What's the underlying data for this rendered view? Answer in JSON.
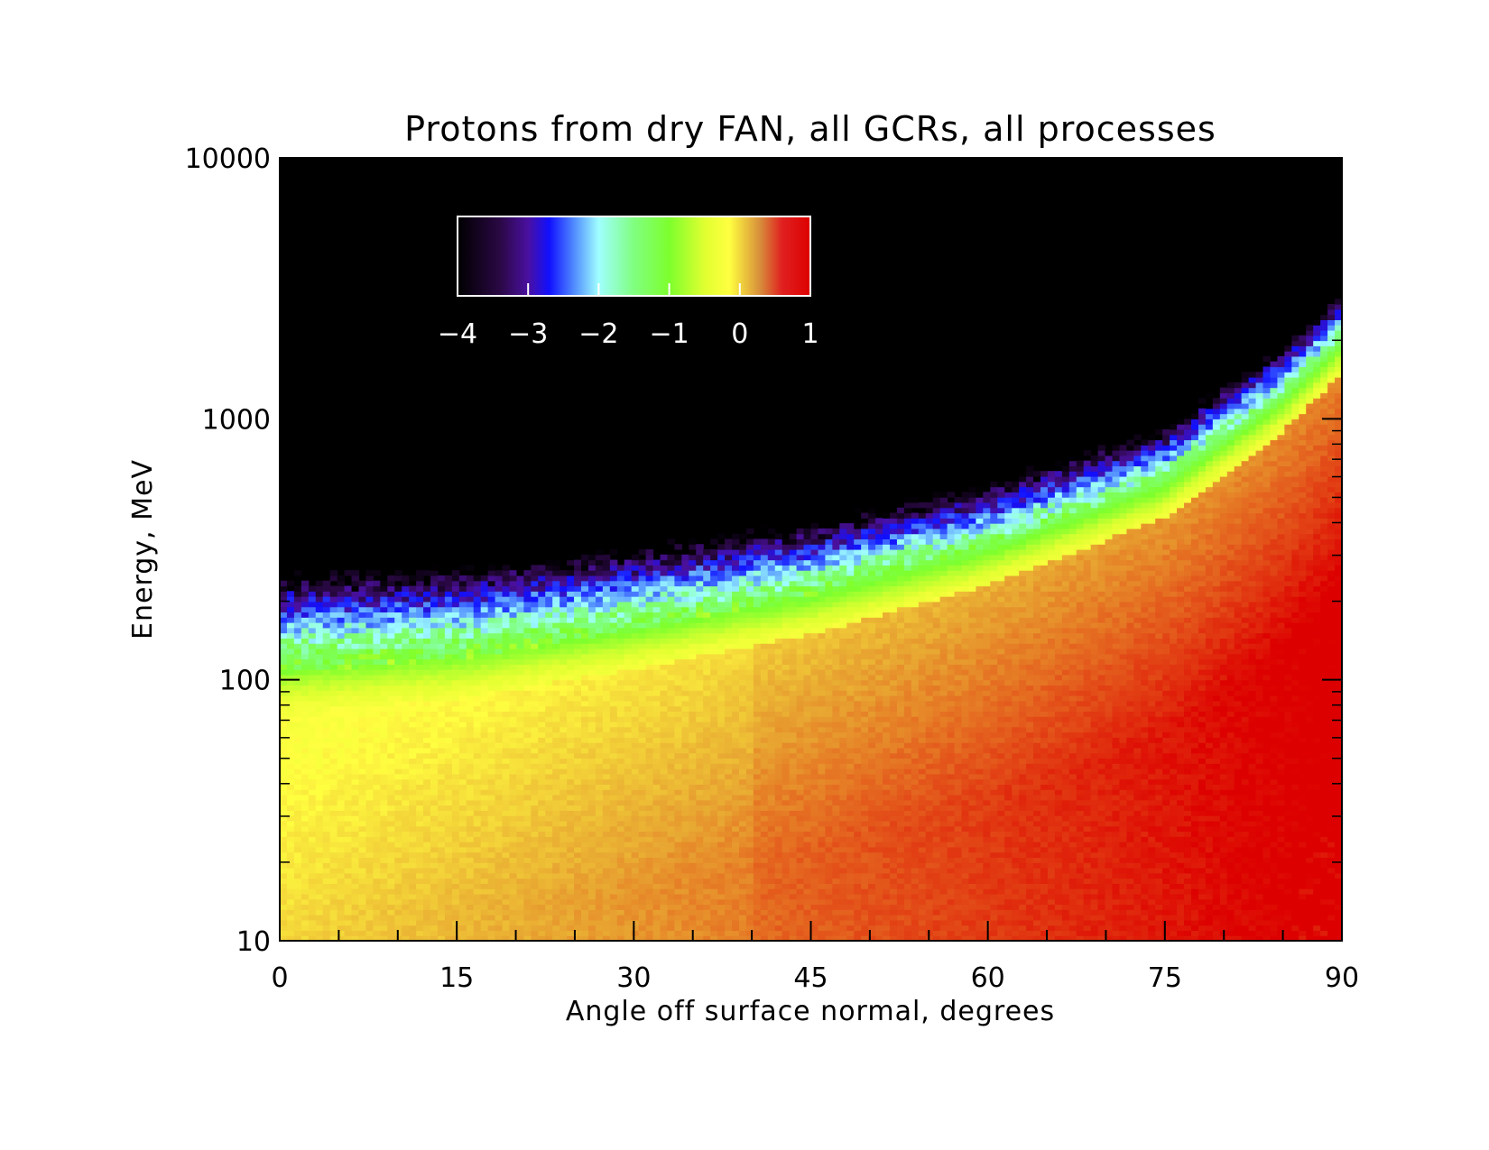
{
  "chart_data": {
    "type": "heatmap",
    "title": "Protons from dry FAN, all GCRs, all processes",
    "xlabel": "Angle off surface normal, degrees",
    "ylabel": "Energy, MeV",
    "xlim": [
      0,
      90
    ],
    "ylim": [
      10,
      10000
    ],
    "y_scale": "log",
    "x_ticks": [
      "0",
      "15",
      "30",
      "45",
      "60",
      "75",
      "90"
    ],
    "x_tick_values": [
      0,
      15,
      30,
      45,
      60,
      75,
      90
    ],
    "y_ticks": [
      "10",
      "100",
      "1000",
      "10000"
    ],
    "y_tick_values": [
      10,
      100,
      1000,
      10000
    ],
    "colorbar": {
      "ticks": [
        "−4",
        "−3",
        "−2",
        "−1",
        "0",
        "1"
      ],
      "tick_values": [
        -4,
        -3,
        -2,
        -1,
        0,
        1
      ],
      "range": [
        -4,
        1
      ],
      "placement": "top-left, inside plot",
      "colors": [
        "#000000",
        "#3a0a66",
        "#1818ff",
        "#8fffff",
        "#7dff2d",
        "#ffff30",
        "#dd8833",
        "#dd0000"
      ]
    },
    "ridge": {
      "description_values_angle_deg": [
        0,
        15,
        30,
        45,
        60,
        75,
        85,
        90
      ],
      "peak_energy_mev": [
        75,
        85,
        110,
        150,
        230,
        420,
        900,
        1500
      ]
    },
    "grid": false
  }
}
